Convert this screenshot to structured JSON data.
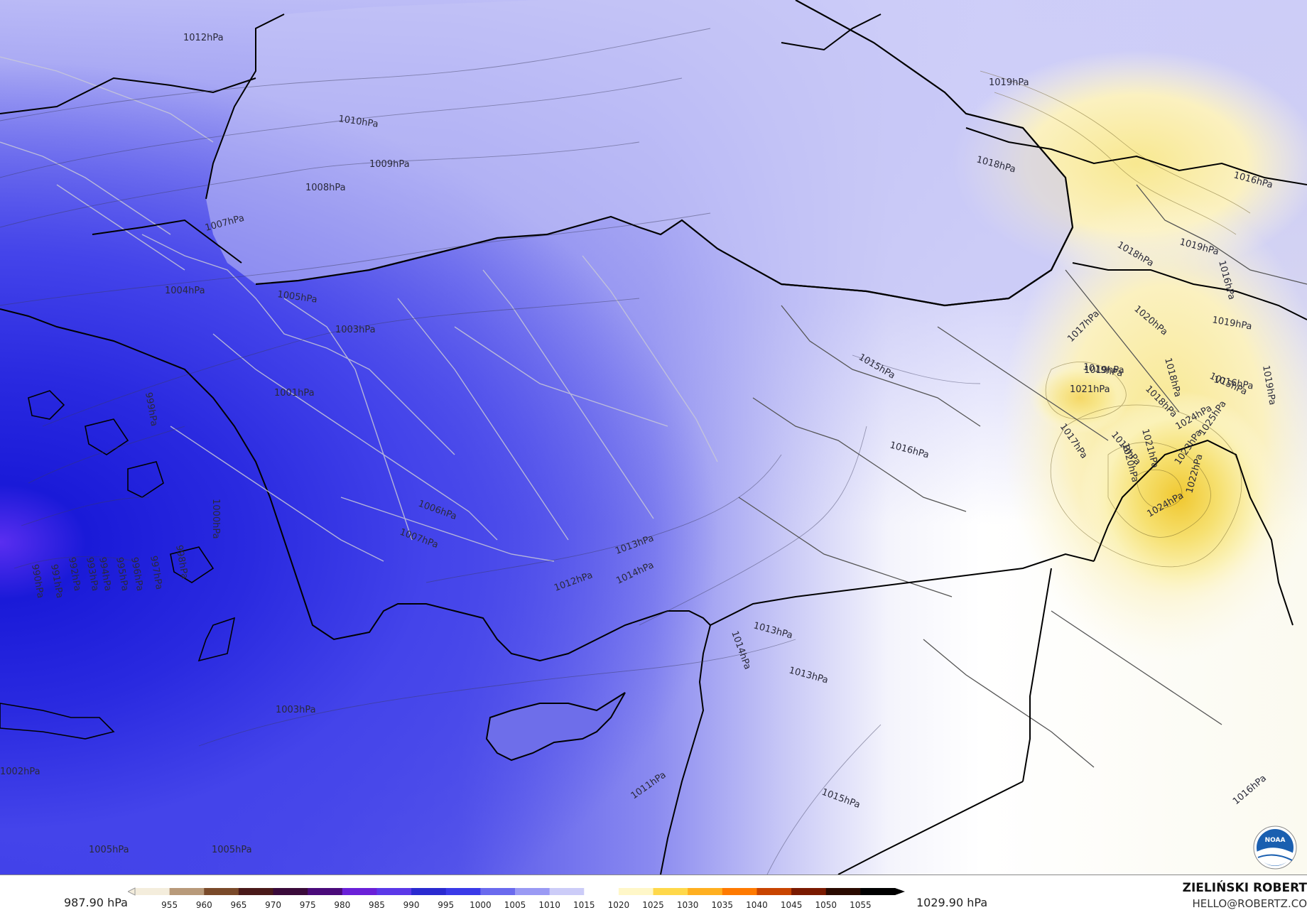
{
  "map": {
    "contour_labels": [
      {
        "text": "1012hPa"
      },
      {
        "text": "1010hPa"
      },
      {
        "text": "1009hPa"
      },
      {
        "text": "1008hPa"
      },
      {
        "text": "1007hPa"
      },
      {
        "text": "1005hPa"
      },
      {
        "text": "1004hPa"
      },
      {
        "text": "1003hPa"
      },
      {
        "text": "1001hPa"
      },
      {
        "text": "1000hPa"
      },
      {
        "text": "999hPa"
      },
      {
        "text": "998hPa"
      },
      {
        "text": "997hPa"
      },
      {
        "text": "996hPa"
      },
      {
        "text": "995hPa"
      },
      {
        "text": "994hPa"
      },
      {
        "text": "993hPa"
      },
      {
        "text": "992hPa"
      },
      {
        "text": "991hPa"
      },
      {
        "text": "990hPa"
      },
      {
        "text": "1002hPa"
      },
      {
        "text": "1005hPa"
      },
      {
        "text": "1005hPa"
      },
      {
        "text": "1003hPa"
      },
      {
        "text": "1006hPa"
      },
      {
        "text": "1007hPa"
      },
      {
        "text": "1012hPa"
      },
      {
        "text": "1013hPa"
      },
      {
        "text": "1014hPa"
      },
      {
        "text": "1014hPa"
      },
      {
        "text": "1013hPa"
      },
      {
        "text": "1013hPa"
      },
      {
        "text": "1011hPa"
      },
      {
        "text": "1015hPa"
      },
      {
        "text": "1015hPa"
      },
      {
        "text": "1016hPa"
      },
      {
        "text": "1016hPa"
      },
      {
        "text": "1016hPa"
      },
      {
        "text": "1017hPa"
      },
      {
        "text": "1018hPa"
      },
      {
        "text": "1018hPa"
      },
      {
        "text": "1018hPa"
      },
      {
        "text": "1019hPa"
      },
      {
        "text": "1019hPa"
      },
      {
        "text": "1019hPa"
      },
      {
        "text": "1019hPa"
      },
      {
        "text": "1019hPa"
      },
      {
        "text": "1020hPa"
      },
      {
        "text": "1020hPa"
      },
      {
        "text": "1021hPa"
      },
      {
        "text": "1021hPa"
      },
      {
        "text": "1022hPa"
      },
      {
        "text": "1023hPa"
      },
      {
        "text": "1024hPa"
      },
      {
        "text": "1024hPa"
      },
      {
        "text": "1025hPa"
      },
      {
        "text": "1017hPa"
      },
      {
        "text": "1018hPa"
      },
      {
        "text": "1018hPa"
      },
      {
        "text": "1016hPa"
      },
      {
        "text": "1015hPa"
      },
      {
        "text": "1016hPa"
      },
      {
        "text": "1019hPa"
      }
    ],
    "logo_name": "noaa-logo"
  },
  "legend": {
    "min_label": "987.90 hPa",
    "max_label": "1029.90 hPa",
    "ticks": [
      "955",
      "960",
      "965",
      "970",
      "975",
      "980",
      "985",
      "990",
      "995",
      "1000",
      "1005",
      "1010",
      "1015",
      "1020",
      "1025",
      "1030",
      "1035",
      "1040",
      "1045",
      "1050",
      "1055"
    ],
    "colors": [
      "#f4eddc",
      "#b89a7a",
      "#7a4a2a",
      "#4a1a1a",
      "#3a0a3a",
      "#4a0a7a",
      "#6a20d8",
      "#5b38e8",
      "#2a2ad0",
      "#3a3ae8",
      "#6a6aee",
      "#9a9af4",
      "#ccccf8",
      "#ffffff",
      "#fff7c8",
      "#ffd84a",
      "#ffb020",
      "#ff7a00",
      "#c84400",
      "#7a1a00",
      "#2a0a00",
      "#000000"
    ]
  },
  "author": {
    "name": "ZIELIŃSKI ROBERT",
    "email": "HELLO@ROBERTZ.CO"
  },
  "colors": {
    "low_pressure": "#2a2ad8",
    "mid_pressure": "#b4b4f4",
    "neutral": "#ffffff",
    "high_pressure": "#f4dc50"
  }
}
